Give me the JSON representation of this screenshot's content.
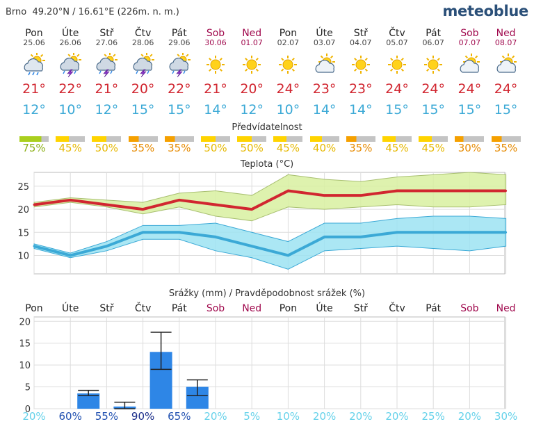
{
  "location": {
    "city": "Brno",
    "coords": "49.20°N / 16.61°E (226m. n. m.)"
  },
  "brand": "meteoblue",
  "colors": {
    "max": "#d12630",
    "min": "#3ba9d6",
    "weekend": "#a0094d",
    "precip": "#2e86e6",
    "pred_low": "#f5a000",
    "pred_mid": "#ffd400",
    "pred_high": "#aacf1e"
  },
  "days": [
    {
      "name": "Pon",
      "date": "25.06",
      "weekend": false,
      "icon": "sun-cloud-rain-icon",
      "tmax": "21°",
      "tmin": "12°",
      "pred": 75,
      "pred_label": "75%",
      "precip_prob": "20%"
    },
    {
      "name": "Úte",
      "date": "26.06",
      "weekend": false,
      "icon": "thunderstorm-icon",
      "tmax": "22°",
      "tmin": "10°",
      "pred": 45,
      "pred_label": "45%",
      "precip_prob": "60%"
    },
    {
      "name": "Stř",
      "date": "27.06",
      "weekend": false,
      "icon": "thunderstorm-icon",
      "tmax": "21°",
      "tmin": "12°",
      "pred": 50,
      "pred_label": "50%",
      "precip_prob": "55%"
    },
    {
      "name": "Čtv",
      "date": "28.06",
      "weekend": false,
      "icon": "thunderstorm-icon",
      "tmax": "20°",
      "tmin": "15°",
      "pred": 35,
      "pred_label": "35%",
      "precip_prob": "90%"
    },
    {
      "name": "Pát",
      "date": "29.06",
      "weekend": false,
      "icon": "thunderstorm-icon",
      "tmax": "22°",
      "tmin": "15°",
      "pred": 35,
      "pred_label": "35%",
      "precip_prob": "65%"
    },
    {
      "name": "Sob",
      "date": "30.06",
      "weekend": true,
      "icon": "sun-icon",
      "tmax": "21°",
      "tmin": "14°",
      "pred": 50,
      "pred_label": "50%",
      "precip_prob": "20%"
    },
    {
      "name": "Ned",
      "date": "01.07",
      "weekend": true,
      "icon": "sun-icon",
      "tmax": "20°",
      "tmin": "12°",
      "pred": 50,
      "pred_label": "50%",
      "precip_prob": "5%"
    },
    {
      "name": "Pon",
      "date": "02.07",
      "weekend": false,
      "icon": "sun-icon",
      "tmax": "24°",
      "tmin": "10°",
      "pred": 45,
      "pred_label": "45%",
      "precip_prob": "10%"
    },
    {
      "name": "Úte",
      "date": "03.07",
      "weekend": false,
      "icon": "sun-cloud-icon",
      "tmax": "23°",
      "tmin": "14°",
      "pred": 40,
      "pred_label": "40%",
      "precip_prob": "20%"
    },
    {
      "name": "Stř",
      "date": "04.07",
      "weekend": false,
      "icon": "sun-icon",
      "tmax": "23°",
      "tmin": "14°",
      "pred": 35,
      "pred_label": "35%",
      "precip_prob": "20%"
    },
    {
      "name": "Čtv",
      "date": "05.07",
      "weekend": false,
      "icon": "sun-icon",
      "tmax": "24°",
      "tmin": "15°",
      "pred": 45,
      "pred_label": "45%",
      "precip_prob": "20%"
    },
    {
      "name": "Pát",
      "date": "06.07",
      "weekend": false,
      "icon": "sun-icon",
      "tmax": "24°",
      "tmin": "15°",
      "pred": 45,
      "pred_label": "45%",
      "precip_prob": "25%"
    },
    {
      "name": "Sob",
      "date": "07.07",
      "weekend": true,
      "icon": "sun-cloud-icon",
      "tmax": "24°",
      "tmin": "15°",
      "pred": 30,
      "pred_label": "30%",
      "precip_prob": "20%"
    },
    {
      "name": "Ned",
      "date": "08.07",
      "weekend": true,
      "icon": "sun-cloud-icon",
      "tmax": "24°",
      "tmin": "15°",
      "pred": 35,
      "pred_label": "35%",
      "precip_prob": "30%"
    }
  ],
  "predictability_title": "Předvídatelnost",
  "chart_data": [
    {
      "type": "line",
      "title": "Teplota (°C)",
      "categories": [
        "25.06",
        "26.06",
        "27.06",
        "28.06",
        "29.06",
        "30.06",
        "01.07",
        "02.07",
        "03.07",
        "04.07",
        "05.07",
        "06.07",
        "07.07",
        "08.07"
      ],
      "ylim": [
        6,
        28
      ],
      "yticks": [
        10,
        15,
        20,
        25
      ],
      "grid": true,
      "series": [
        {
          "values": [
            21,
            22,
            21,
            20,
            22,
            21,
            20,
            24,
            23,
            23,
            24,
            24,
            24,
            24
          ],
          "range_low": [
            20.5,
            21.5,
            20.5,
            19.0,
            20.5,
            18.5,
            17.5,
            20.5,
            20.0,
            20.5,
            21.0,
            20.5,
            20.5,
            21.0
          ],
          "range_high": [
            21.5,
            22.5,
            22.0,
            21.5,
            23.5,
            24.0,
            23.0,
            27.5,
            26.5,
            26.0,
            27.0,
            27.5,
            28.0,
            27.5
          ]
        },
        {
          "values": [
            12,
            10,
            12,
            15,
            15,
            14,
            12,
            10,
            14,
            14,
            15,
            15,
            15,
            15
          ],
          "range_low": [
            11.5,
            9.5,
            11.0,
            13.5,
            13.5,
            11.0,
            9.5,
            7.0,
            11.0,
            11.5,
            12.0,
            11.5,
            11.0,
            12.0
          ],
          "range_high": [
            12.5,
            10.5,
            13.0,
            16.5,
            16.5,
            17.0,
            15.0,
            13.0,
            17.0,
            17.0,
            18.0,
            18.5,
            18.5,
            18.0
          ]
        }
      ]
    },
    {
      "type": "bar",
      "title": "Srážky (mm) / Pravděpodobnost srážek (%)",
      "categories": [
        "Pon",
        "Úte",
        "Stř",
        "Čtv",
        "Pát",
        "Sob",
        "Ned",
        "Pon",
        "Úte",
        "Stř",
        "Čtv",
        "Pát",
        "Sob",
        "Ned"
      ],
      "weekend": [
        false,
        false,
        false,
        false,
        false,
        true,
        true,
        false,
        false,
        false,
        false,
        false,
        true,
        true
      ],
      "ylim": [
        0,
        21
      ],
      "yticks": [
        0,
        5,
        10,
        15,
        20
      ],
      "grid": true,
      "values": [
        0,
        3.5,
        0.5,
        13,
        5,
        0,
        0,
        0,
        0,
        0,
        0,
        0,
        0,
        0
      ],
      "error_low": [
        0,
        3,
        0,
        9,
        3,
        0,
        0,
        0,
        0,
        0,
        0,
        0,
        0,
        0
      ],
      "error_high": [
        0,
        4.2,
        1.5,
        17.5,
        6.6,
        0,
        0,
        0,
        0,
        0,
        0,
        0,
        0,
        0
      ],
      "probability": [
        "20%",
        "60%",
        "55%",
        "90%",
        "65%",
        "20%",
        "5%",
        "10%",
        "20%",
        "20%",
        "20%",
        "25%",
        "20%",
        "30%"
      ]
    }
  ]
}
